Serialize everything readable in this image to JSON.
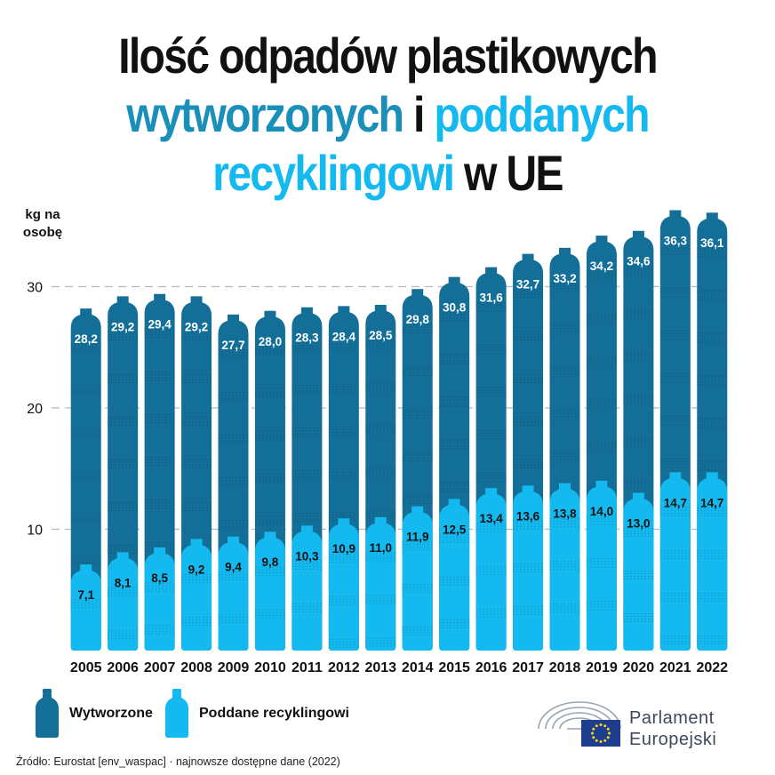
{
  "title": {
    "line1": "Ilość odpadów plastikowych",
    "w_generated": "wytworzonych",
    "w_and": "i",
    "w_recycled": "poddanych",
    "w_recycled2": "recyklingowi",
    "w_in": "w UE"
  },
  "colors": {
    "generated": "#136f98",
    "recycled": "#13b9ef",
    "grid": "#b9b9b9"
  },
  "chart_data": {
    "type": "bar",
    "ylabel": "kg na osobę",
    "ylim": [
      0,
      37
    ],
    "yticks": [
      10,
      20,
      30
    ],
    "categories": [
      "2005",
      "2006",
      "2007",
      "2008",
      "2009",
      "2010",
      "2011",
      "2012",
      "2013",
      "2014",
      "2015",
      "2016",
      "2017",
      "2018",
      "2019",
      "2020",
      "2021",
      "2022"
    ],
    "series": [
      {
        "name": "Wytworzone",
        "values": [
          28.2,
          29.2,
          29.4,
          29.2,
          27.7,
          28.0,
          28.3,
          28.4,
          28.5,
          29.8,
          30.8,
          31.6,
          32.7,
          33.2,
          34.2,
          34.6,
          36.3,
          36.1
        ],
        "labels": [
          "28,2",
          "29,2",
          "29,4",
          "29,2",
          "27,7",
          "28,0",
          "28,3",
          "28,4",
          "28,5",
          "29,8",
          "30,8",
          "31,6",
          "32,7",
          "33,2",
          "34,2",
          "34,6",
          "36,3",
          "36,1"
        ]
      },
      {
        "name": "Poddane recyklingowi",
        "values": [
          7.1,
          8.1,
          8.5,
          9.2,
          9.4,
          9.8,
          10.3,
          10.9,
          11.0,
          11.9,
          12.5,
          13.4,
          13.6,
          13.8,
          14.0,
          13.0,
          14.7,
          14.7
        ],
        "labels": [
          "7,1",
          "8,1",
          "8,5",
          "9,2",
          "9,4",
          "9,8",
          "10,3",
          "10,9",
          "11,0",
          "11,9",
          "12,5",
          "13,4",
          "13,6",
          "13,8",
          "14,0",
          "13,0",
          "14,7",
          "14,7"
        ]
      }
    ],
    "grid": true,
    "legend_position": "bottom-left"
  },
  "ylabel_lines": [
    "kg na",
    "osobę"
  ],
  "legend": {
    "generated": "Wytworzone",
    "recycled": "Poddane recyklingowi"
  },
  "source": "Źródło: Eurostat [env_waspac] · najnowsze dostępne dane (2022)",
  "logo": {
    "line1": "Parlament",
    "line2": "Europejski"
  }
}
